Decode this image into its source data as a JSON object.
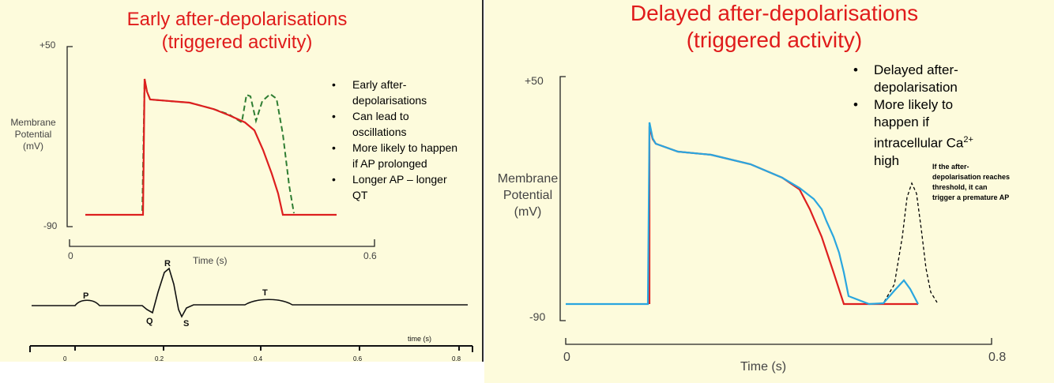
{
  "left": {
    "title_line1": "Early after-depolarisations",
    "title_line2": "(triggered activity)",
    "y_axis": {
      "top_tick": "+50",
      "bottom_tick": "-90",
      "label_line1": "Membrane",
      "label_line2": "Potential",
      "label_line3": "(mV)"
    },
    "x_axis": {
      "start": "0",
      "end": "0.6",
      "label": "Time (s)"
    },
    "bullets": [
      "Early after-",
      "depolarisations",
      "Can lead to",
      "oscillations",
      "More likely to happen",
      "if  AP prolonged",
      "Longer AP – longer",
      "QT"
    ],
    "ecg": {
      "waves": [
        "P",
        "Q",
        "R",
        "S",
        "T"
      ],
      "axis_label": "time (s)",
      "ticks": [
        "0",
        "0.2",
        "0.4",
        "0.6",
        "0.8"
      ]
    },
    "colors": {
      "normal_ap": "#dd1f1f",
      "ead_trace": "#2e7d32",
      "title": "#e01b1b"
    }
  },
  "right": {
    "title_line1": "Delayed after-depolarisations",
    "title_line2": "(triggered activity)",
    "y_axis": {
      "top_tick": "+50",
      "bottom_tick": "-90",
      "label_line1": "Membrane",
      "label_line2": "Potential",
      "label_line3": "(mV)"
    },
    "x_axis": {
      "start": "0",
      "end": "0.8",
      "label": "Time (s)"
    },
    "bullets": [
      "Delayed after-",
      "depolarisation",
      "More likely to",
      "happen if",
      "intracellular Ca",
      "high"
    ],
    "superscript": "2+",
    "annotation": [
      "If the after-",
      "depolarisation reaches",
      "threshold, it can",
      "trigger a premature AP"
    ],
    "colors": {
      "normal_ap": "#dd1f1f",
      "dad_trace": "#29a6df",
      "triggered_ap": "#000000",
      "title": "#e01b1b"
    }
  }
}
